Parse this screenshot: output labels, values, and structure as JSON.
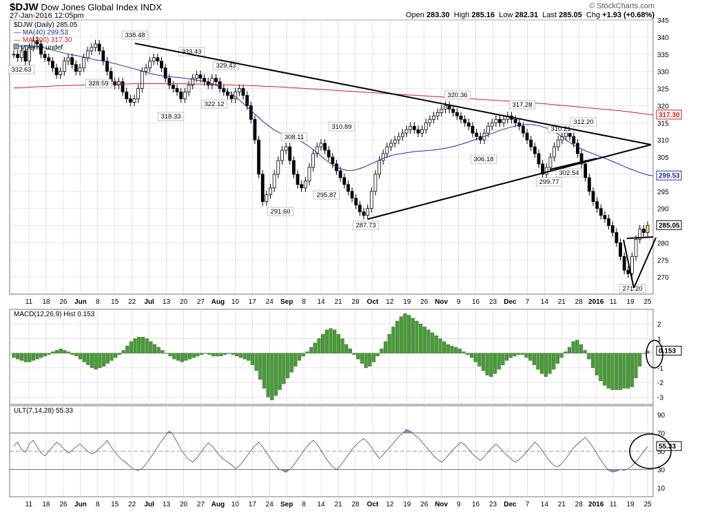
{
  "header": {
    "symbol": "$DJW",
    "name": "Dow Jones Global Index",
    "exchange": "INDX",
    "datetime": "27-Jan-2016 12:05pm",
    "watermark": "© StockCharts.com",
    "open_label": "Open",
    "open": "283.30",
    "high_label": "High",
    "high": "285.16",
    "low_label": "Low",
    "low": "282.31",
    "last_label": "Last",
    "last": "285.05",
    "chg_label": "Chg",
    "chg": "+1.93 (+0.68%)"
  },
  "legend": {
    "price": "$DJW (Daily) 285.05",
    "ma40": "MA(40) 299.53",
    "ma200": "MA(200) 317.30",
    "volume": "Volume undef"
  },
  "colors": {
    "ma40": "#1c2f9e",
    "ma200": "#cc2222",
    "macd": "#4a9a3a",
    "ult": "#5a6f9a",
    "candle": "#000000",
    "yellow_candle": "#f2e35a",
    "grid": "#d0d0d0"
  },
  "chart_data": [
    {
      "type": "candlestick",
      "title": "$DJW (Daily)",
      "ylim": [
        265,
        345
      ],
      "yticks": [
        270,
        275,
        280,
        285,
        290,
        295,
        300,
        305,
        310,
        315,
        320,
        325,
        330,
        335,
        340,
        345
      ],
      "x_labels": [
        "11",
        "18",
        "26",
        "Jun",
        "8",
        "15",
        "22",
        "Jul",
        "13",
        "20",
        "27",
        "Aug",
        "10",
        "17",
        "24",
        "Sep",
        "8",
        "14",
        "21",
        "28",
        "Oct",
        "12",
        "19",
        "26",
        "Nov",
        "9",
        "16",
        "23",
        "Dec",
        "7",
        "14",
        "21",
        "28",
        "2016",
        "11",
        "19",
        "25"
      ],
      "closes": [
        335,
        334,
        336,
        333,
        337,
        339,
        338,
        335,
        334,
        333,
        331,
        329,
        330,
        333,
        334,
        332,
        330,
        331,
        334,
        336,
        337,
        338,
        336,
        333,
        330,
        327,
        326,
        327,
        324,
        322,
        321,
        322,
        325,
        330,
        331,
        333,
        334,
        333,
        331,
        328,
        326,
        325,
        324,
        322,
        324,
        326,
        328,
        329,
        328,
        327,
        326,
        328,
        327,
        325,
        324,
        323,
        322,
        324,
        325,
        323,
        320,
        316,
        310,
        300,
        292,
        294,
        296,
        300,
        304,
        307,
        308,
        304,
        300,
        297,
        296,
        298,
        302,
        306,
        308,
        309,
        307,
        305,
        303,
        301,
        299,
        297,
        295,
        293,
        291,
        289,
        288,
        290,
        295,
        300,
        304,
        306,
        308,
        309,
        310,
        311,
        312,
        313,
        314,
        313,
        312,
        313,
        315,
        316,
        317,
        318,
        319,
        320,
        319,
        318,
        317,
        316,
        315,
        314,
        312,
        311,
        310,
        312,
        314,
        315,
        316,
        315,
        316,
        317,
        316,
        315,
        314,
        312,
        310,
        308,
        306,
        303,
        300,
        302,
        305,
        308,
        310,
        311,
        312,
        311,
        309,
        306,
        303,
        299,
        295,
        292,
        290,
        288,
        287,
        285,
        283,
        280,
        276,
        272,
        271,
        276,
        281,
        284,
        283,
        285.05
      ],
      "ma40": [
        337,
        337.3,
        337.4,
        337.5,
        337.4,
        337.3,
        337.1,
        336.8,
        336.5,
        336.1,
        335.8,
        335.4,
        335.1,
        334.8,
        334.6,
        334.3,
        334,
        333.7,
        333.4,
        333.2,
        333,
        332.7,
        332.4,
        332.1,
        331.7,
        331.4,
        331,
        330.7,
        330.3,
        329.9,
        329.5,
        329.2,
        328.9,
        328.7,
        328.5,
        328.4,
        328.3,
        328.2,
        328,
        327.8,
        327.6,
        327.4,
        327.1,
        326.8,
        326.4,
        325.9,
        325.3,
        324.6,
        323.8,
        322.8,
        321.8,
        320.6,
        319.4,
        318.2,
        317,
        315.8,
        314.7,
        313.7,
        312.8,
        312.1,
        311.5,
        311,
        310.5,
        310,
        309.4,
        308.6,
        307.7,
        306.7,
        305.6,
        304.5,
        303.5,
        302.6,
        301.9,
        301.4,
        301.1,
        301.1,
        301.3,
        301.7,
        302.2,
        302.8,
        303.4,
        304,
        304.6,
        305.1,
        305.5,
        305.8,
        306,
        306.2,
        306.4,
        306.6,
        306.7,
        306.8,
        306.9,
        307,
        307.2,
        307.4,
        307.6,
        307.9,
        308.2,
        308.6,
        309,
        309.4,
        309.9,
        310.3,
        310.8,
        311.3,
        311.8,
        312.3,
        312.8,
        313.2,
        313.6,
        313.9,
        314.2,
        314.4,
        314.5,
        314.5,
        314.3,
        314,
        313.6,
        313.1,
        312.4,
        311.6,
        310.7,
        309.7,
        308.8,
        308.1,
        307.4,
        306.8,
        306.3,
        305.8,
        305.3,
        304.8,
        304.3,
        303.7,
        303.2,
        302.6,
        302,
        301.5,
        301,
        300.5,
        300.1,
        299.7,
        299.53
      ],
      "ma200": [
        325.2,
        325.3,
        325.5,
        325.6,
        325.8,
        325.9,
        326,
        326.1,
        326.2,
        326.3,
        326.3,
        326.4,
        326.4,
        326.4,
        326.4,
        326.4,
        326.3,
        326.3,
        326.2,
        326.1,
        326,
        325.9,
        325.8,
        325.6,
        325.5,
        325.3,
        325.1,
        324.9,
        324.7,
        324.5,
        324.3,
        324.1,
        323.9,
        323.7,
        323.5,
        323.3,
        323.1,
        322.9,
        322.7,
        322.5,
        322.3,
        322.1,
        321.9,
        321.7,
        321.5,
        321.3,
        321.1,
        320.8,
        320.6,
        320.3,
        320,
        319.7,
        319.4,
        319.1,
        318.8,
        318.5,
        318.1,
        317.7,
        317.3
      ],
      "series_labels": [
        "MA(40) 299.53",
        "MA(200) 317.30"
      ],
      "annotations": [
        {
          "date_label": "11",
          "value": "332.63"
        },
        {
          "date_label": "26",
          "value": "328.59"
        },
        {
          "date_label": "22",
          "value": "338.48"
        },
        {
          "date_label": "Jul",
          "value": "318.33"
        },
        {
          "date_label": "13",
          "value": "333.43"
        },
        {
          "date_label": "27",
          "value": "322.12"
        },
        {
          "date_label": "Aug",
          "value": "329.43"
        },
        {
          "date_label": "24",
          "value": "291.60"
        },
        {
          "date_label": "Sep",
          "value": "308.11"
        },
        {
          "date_label": "14",
          "value": "295.87"
        },
        {
          "date_label": "21",
          "value": "310.89"
        },
        {
          "date_label": "28",
          "value": "287.73"
        },
        {
          "date_label": "Nov",
          "value": "320.36"
        },
        {
          "date_label": "16",
          "value": "306.18"
        },
        {
          "date_label": "Dec",
          "value": "317.28"
        },
        {
          "date_label": "14",
          "value": "299.77"
        },
        {
          "date_label": "14",
          "value": "310.21"
        },
        {
          "date_label": "21",
          "value": "302.54"
        },
        {
          "date_label": "28",
          "value": "312.20"
        },
        {
          "date_label": "19",
          "value": "271.20"
        }
      ],
      "last_value": "285.05",
      "ma40_value": "299.53",
      "ma200_value": "317.30"
    },
    {
      "type": "bar",
      "title": "MACD(12,26,9) Hist 0.153",
      "ylim": [
        -3.5,
        3
      ],
      "yticks": [
        -3,
        -2,
        -1,
        0,
        1,
        2
      ],
      "values": [
        -0.3,
        -0.4,
        -0.5,
        -0.6,
        -0.6,
        -0.5,
        -0.4,
        -0.3,
        -0.2,
        -0.1,
        0.1,
        0.2,
        0.3,
        0.2,
        0.1,
        -0.1,
        -0.2,
        -0.4,
        -0.6,
        -0.8,
        -1,
        -1.1,
        -1,
        -0.9,
        -0.7,
        -0.5,
        -0.3,
        -0.1,
        0.2,
        0.5,
        0.8,
        1,
        1.1,
        1.1,
        1,
        0.8,
        0.6,
        0.4,
        0.2,
        0,
        -0.2,
        -0.4,
        -0.5,
        -0.6,
        -0.5,
        -0.4,
        -0.3,
        -0.2,
        -0.1,
        0,
        -0.1,
        -0.2,
        -0.2,
        -0.2,
        -0.1,
        0,
        -0.1,
        -0.2,
        -0.3,
        -0.4,
        -0.5,
        -0.8,
        -1.2,
        -1.8,
        -2.4,
        -3,
        -3.2,
        -2.9,
        -2.5,
        -2.1,
        -1.7,
        -1.3,
        -0.9,
        -0.5,
        -0.2,
        0.1,
        0.4,
        0.7,
        1,
        1.3,
        1.6,
        1.7,
        1.6,
        1.3,
        1,
        0.6,
        0.3,
        -0.1,
        -0.4,
        -0.7,
        -1,
        -0.9,
        -0.6,
        -0.2,
        0.3,
        0.8,
        1.3,
        1.8,
        2.2,
        2.5,
        2.7,
        2.6,
        2.4,
        2.2,
        2,
        1.8,
        1.6,
        1.4,
        1.2,
        1,
        0.8,
        0.6,
        0.5,
        0.4,
        0.3,
        0.1,
        -0.1,
        -0.3,
        -0.6,
        -0.9,
        -1.2,
        -1.5,
        -1.6,
        -1.4,
        -1.1,
        -0.8,
        -0.5,
        -0.3,
        -0.2,
        -0.1,
        -0.1,
        -0.3,
        -0.5,
        -0.8,
        -1.1,
        -1.4,
        -1.6,
        -1.4,
        -1.1,
        -0.7,
        -0.3,
        0.1,
        0.4,
        0.8,
        0.9,
        0.6,
        0.2,
        -0.4,
        -1,
        -1.5,
        -1.9,
        -2.2,
        -2.4,
        -2.5,
        -2.5,
        -2.5,
        -2.4,
        -2.4,
        -2.3,
        -1.7,
        -0.9,
        0,
        0.153
      ],
      "value_label": "0.153"
    },
    {
      "type": "line",
      "title": "ULT(7,14,28) 55.33",
      "ylim": [
        0,
        100
      ],
      "yticks": [
        10,
        30,
        50,
        70,
        90
      ],
      "reference_lines": [
        30,
        50,
        70
      ],
      "values": [
        56,
        60,
        52,
        49,
        58,
        62,
        55,
        48,
        45,
        50,
        55,
        60,
        57,
        52,
        48,
        51,
        55,
        58,
        54,
        50,
        47,
        49,
        53,
        57,
        62,
        55,
        49,
        44,
        40,
        37,
        33,
        30,
        29,
        31,
        36,
        42,
        48,
        55,
        61,
        67,
        72,
        68,
        60,
        52,
        46,
        41,
        38,
        42,
        48,
        54,
        59,
        56,
        50,
        45,
        41,
        38,
        35,
        31,
        34,
        39,
        45,
        51,
        56,
        60,
        55,
        48,
        42,
        36,
        31,
        29,
        27,
        30,
        35,
        41,
        47,
        53,
        58,
        62,
        58,
        51,
        44,
        38,
        33,
        30,
        34,
        40,
        46,
        52,
        57,
        61,
        64,
        60,
        54,
        48,
        42,
        46,
        51,
        56,
        61,
        66,
        70,
        74,
        72,
        68,
        65,
        60,
        55,
        50,
        45,
        41,
        38,
        42,
        47,
        52,
        56,
        60,
        57,
        52,
        47,
        43,
        40,
        44,
        49,
        54,
        58,
        54,
        49,
        45,
        41,
        38,
        41,
        45,
        50,
        55,
        60,
        56,
        50,
        44,
        38,
        34,
        33,
        37,
        42,
        48,
        54,
        58,
        62,
        65,
        60,
        54,
        47,
        40,
        34,
        29,
        27,
        28,
        30,
        29,
        31,
        34,
        39,
        44,
        50,
        55.33
      ],
      "value_label": "55.33"
    }
  ]
}
